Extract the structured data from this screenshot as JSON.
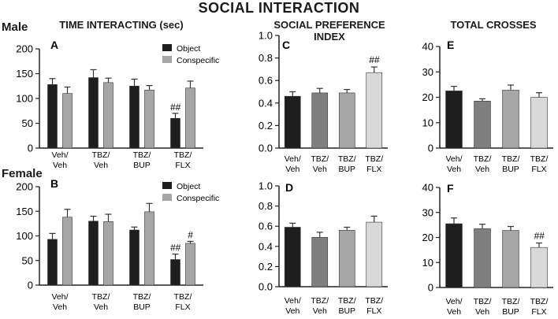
{
  "title": "SOCIAL INTERACTION",
  "row_labels": [
    "Male",
    "Female"
  ],
  "column_titles": [
    "TIME INTERACTING (sec)",
    "SOCIAL PREFERENCE\nINDEX",
    "TOTAL CROSSES"
  ],
  "colors": {
    "veh_veh": "#1e1e1e",
    "tbz_veh": "#7f7f7f",
    "tbz_bup": "#a6a6a6",
    "tbz_flx": "#d9d9d9",
    "object": "#1e1e1e",
    "conspecific": "#a6a6a6"
  },
  "chart_data": [
    {
      "panel": "A",
      "type": "bar",
      "categories": [
        "Veh/\nVeh",
        "TBZ/\nVeh",
        "TBZ/\nBUP",
        "TBZ/\nFLX"
      ],
      "series": [
        {
          "name": "Object",
          "values": [
            128,
            142,
            125,
            60
          ],
          "errors": [
            12,
            16,
            14,
            10
          ]
        },
        {
          "name": "Conspecific",
          "values": [
            110,
            132,
            117,
            121
          ],
          "errors": [
            13,
            9,
            9,
            14
          ]
        }
      ],
      "annotations": [
        {
          "category": 3,
          "series": 0,
          "text": "##"
        }
      ],
      "ylim": [
        0,
        200
      ],
      "yticks": [
        0,
        50,
        100,
        150,
        200
      ],
      "legend": "top-right"
    },
    {
      "panel": "C",
      "type": "bar",
      "categories": [
        "Veh/\nVeh",
        "TBZ/\nVeh",
        "TBZ/\nBUP",
        "TBZ/\nFLX"
      ],
      "values": [
        0.46,
        0.49,
        0.49,
        0.67
      ],
      "errors": [
        0.04,
        0.04,
        0.03,
        0.05
      ],
      "annotations": [
        {
          "category": 3,
          "text": "##"
        }
      ],
      "ylim": [
        0,
        1.0
      ],
      "yticks": [
        0.0,
        0.2,
        0.4,
        0.6,
        0.8,
        1.0
      ]
    },
    {
      "panel": "E",
      "type": "bar",
      "categories": [
        "Veh/\nVeh",
        "TBZ/\nVeh",
        "TBZ/\nBUP",
        "TBZ/\nFLX"
      ],
      "values": [
        22.5,
        18.5,
        22.8,
        20
      ],
      "errors": [
        1.8,
        0.9,
        2.0,
        1.8
      ],
      "annotations": [],
      "ylim": [
        0,
        40
      ],
      "yticks": [
        0,
        10,
        20,
        30,
        40
      ]
    },
    {
      "panel": "B",
      "type": "bar",
      "categories": [
        "Veh/\nVeh",
        "TBZ/\nVeh",
        "TBZ/\nBUP",
        "TBZ/\nFLX"
      ],
      "series": [
        {
          "name": "Object",
          "values": [
            93,
            130,
            112,
            52
          ],
          "errors": [
            12,
            10,
            6,
            11
          ]
        },
        {
          "name": "Conspecific",
          "values": [
            138,
            129,
            149,
            85
          ],
          "errors": [
            16,
            15,
            17,
            4
          ]
        }
      ],
      "annotations": [
        {
          "category": 3,
          "series": 0,
          "text": "##"
        },
        {
          "category": 3,
          "series": 1,
          "text": "#"
        }
      ],
      "ylim": [
        0,
        200
      ],
      "yticks": [
        0,
        50,
        100,
        150,
        200
      ],
      "legend": "top-right"
    },
    {
      "panel": "D",
      "type": "bar",
      "categories": [
        "Veh/\nVeh",
        "TBZ/\nVeh",
        "TBZ/\nBUP",
        "TBZ/\nFLX"
      ],
      "values": [
        0.59,
        0.49,
        0.56,
        0.64
      ],
      "errors": [
        0.04,
        0.05,
        0.03,
        0.06
      ],
      "annotations": [],
      "ylim": [
        0,
        1.0
      ],
      "yticks": [
        0.0,
        0.2,
        0.4,
        0.6,
        0.8,
        1.0
      ]
    },
    {
      "panel": "F",
      "type": "bar",
      "categories": [
        "Veh/\nVeh",
        "TBZ/\nVeh",
        "TBZ/\nBUP",
        "TBZ/\nFLX"
      ],
      "values": [
        25.5,
        23.5,
        22.8,
        16
      ],
      "errors": [
        2.3,
        1.8,
        1.6,
        1.8
      ],
      "annotations": [
        {
          "category": 3,
          "text": "##"
        }
      ],
      "ylim": [
        0,
        40
      ],
      "yticks": [
        0,
        10,
        20,
        30,
        40
      ]
    }
  ]
}
